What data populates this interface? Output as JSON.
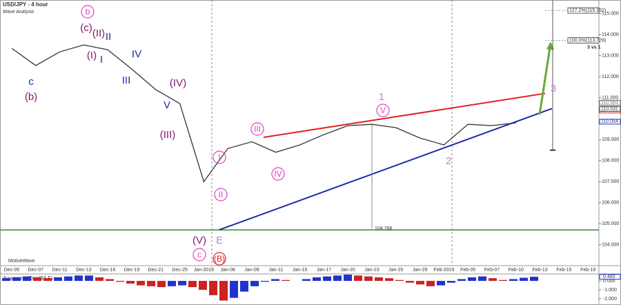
{
  "chart_data": {
    "type": "line",
    "title": "USD/JPY - 4 hour",
    "subtitle": "Wave Analysis",
    "watermark": "MotiveWave",
    "categories": [
      "Dec-05",
      "Dec-07",
      "Dec-11",
      "Dec-13",
      "Dec-16",
      "Dec-19",
      "Dec-21",
      "Dec-25",
      "Jan-2019",
      "Jan-06",
      "Jan-09",
      "Jan-11",
      "Jan-15",
      "Jan-17",
      "Jan-20",
      "Jan-23",
      "Jan-25",
      "Jan-29",
      "Feb-2019",
      "Feb-05",
      "Feb-07",
      "Feb-10",
      "Feb-13",
      "Feb-15",
      "Feb-19"
    ],
    "series": [
      {
        "name": "USD/JPY",
        "color": "#333333",
        "values": [
          113.35,
          112.53,
          113.18,
          113.51,
          113.28,
          112.36,
          111.38,
          110.72,
          107.0,
          108.58,
          108.9,
          108.4,
          108.75,
          109.24,
          109.67,
          109.73,
          109.57,
          109.08,
          108.75,
          109.73,
          109.67,
          109.8,
          null,
          null,
          null
        ]
      }
    ],
    "ylim": [
      103.0,
      115.65
    ],
    "yticks": [
      {
        "value": 104,
        "label": "104.000"
      },
      {
        "value": 105,
        "label": "105.000"
      },
      {
        "value": 106,
        "label": "106.000"
      },
      {
        "value": 107,
        "label": "107.000"
      },
      {
        "value": 108,
        "label": "108.000"
      },
      {
        "value": 109,
        "label": "109.000"
      },
      {
        "value": 111,
        "label": "111.000"
      },
      {
        "value": 112,
        "label": "112.000"
      },
      {
        "value": 113,
        "label": "113.000"
      },
      {
        "value": 114,
        "label": "114.000"
      },
      {
        "value": 115,
        "label": "115.000"
      }
    ],
    "price_boxes": [
      {
        "value": 110.563,
        "label": "110.563",
        "color": "#666666"
      },
      {
        "value": 110.32,
        "label": "110.320",
        "color": "#cc2222"
      },
      {
        "value": 110.531,
        "label": "110.531",
        "color": "#333333"
      },
      {
        "value": 110.054,
        "label": "110.054",
        "color": "#2233aa"
      }
    ],
    "support": {
      "value": 104.7,
      "color": "#2e8b2e"
    },
    "trend_lines": [
      {
        "values": [
          109.11,
          111.2
        ],
        "color": "#e02020"
      },
      {
        "values": [
          104.71,
          110.48
        ],
        "color": "#1a2aa8"
      },
      {
        "values": [
          110.2,
          113.6
        ],
        "color": "#6aa832"
      }
    ],
    "fib_levels": [
      {
        "value": 115.152,
        "label": "127.2%(115.152)"
      },
      {
        "value": 113.729,
        "label": "100.0%(113.729)"
      }
    ],
    "projection_range": [
      108.5,
      115.65
    ],
    "projection_note": "3 vs 1",
    "measure": {
      "value": 104.768,
      "label": "104.768"
    },
    "waves": [
      {
        "text": "b",
        "color": "#e040c0",
        "circle": true
      },
      {
        "text": "(c)",
        "color": "#7a1a6a",
        "circle": false
      },
      {
        "text": "(II)",
        "color": "#7a1a6a",
        "circle": false
      },
      {
        "text": "II",
        "color": "#1a2aa8",
        "circle": false
      },
      {
        "text": "(I)",
        "color": "#7a1a6a",
        "circle": false
      },
      {
        "text": "I",
        "color": "#1a2aa8",
        "circle": false
      },
      {
        "text": "IV",
        "color": "#1a2aa8",
        "circle": false
      },
      {
        "text": "III",
        "color": "#1a2aa8",
        "circle": false
      },
      {
        "text": "c",
        "color": "#1a2aa8",
        "circle": false
      },
      {
        "text": "(b)",
        "color": "#7a1a6a",
        "circle": false
      },
      {
        "text": "(IV)",
        "color": "#7a1a6a",
        "circle": false
      },
      {
        "text": "V",
        "color": "#1a2aa8",
        "circle": false
      },
      {
        "text": "(III)",
        "color": "#7a1a6a",
        "circle": false
      },
      {
        "text": "I",
        "color": "#e040c0",
        "circle": true
      },
      {
        "text": "II",
        "color": "#e040c0",
        "circle": true
      },
      {
        "text": "III",
        "color": "#e040c0",
        "circle": true
      },
      {
        "text": "IV",
        "color": "#e040c0",
        "circle": true
      },
      {
        "text": "1",
        "color": "#c080e0",
        "circle": false
      },
      {
        "text": "V",
        "color": "#e040c0",
        "circle": true
      },
      {
        "text": "2",
        "color": "#c080e0",
        "circle": false
      },
      {
        "text": "3",
        "color": "#c080e0",
        "circle": false
      },
      {
        "text": "(V)",
        "color": "#7a1a6a",
        "circle": false
      },
      {
        "text": "c",
        "color": "#e040c0",
        "circle": true
      },
      {
        "text": "E",
        "color": "#c080e0",
        "circle": false
      },
      {
        "text": "(B)",
        "color": "#e02020",
        "circle": true
      }
    ],
    "oscillator": {
      "title": "Awesome Osc(34,5)",
      "up_color": "#2233cc",
      "down_color": "#cc2222",
      "values": [
        0.3,
        0.4,
        0.5,
        0.4,
        0.3,
        0.4,
        0.5,
        0.6,
        0.6,
        0.4,
        0.2,
        -0.1,
        -0.3,
        -0.5,
        -0.6,
        -0.7,
        -0.6,
        -0.5,
        -0.7,
        -1.0,
        -1.6,
        -2.2,
        -1.9,
        -1.2,
        -0.6,
        -0.1,
        0.2,
        0.1,
        0.0,
        0.2,
        0.4,
        0.5,
        0.6,
        0.7,
        0.6,
        0.5,
        0.4,
        0.3,
        0.1,
        -0.2,
        -0.4,
        -0.6,
        -0.5,
        -0.2,
        0.2,
        0.4,
        0.5,
        0.3,
        0.1,
        0.2,
        0.35,
        0.46
      ],
      "ylim": [
        -2.7,
        0.7
      ],
      "yticks": [
        {
          "value": 0,
          "label": "0.000"
        },
        {
          "value": -1,
          "label": "-1.000"
        },
        {
          "value": -2,
          "label": "-2.000"
        }
      ],
      "last": {
        "value": 0.46,
        "label": "0.460"
      }
    }
  }
}
